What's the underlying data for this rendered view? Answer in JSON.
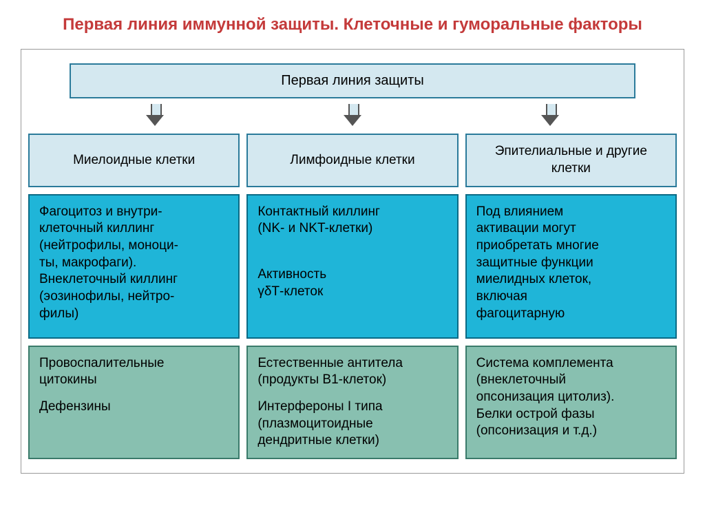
{
  "title": "Первая линия иммунной защиты. Клеточные и гуморальные факторы",
  "top_box": "Первая линия защиты",
  "colors": {
    "title_color": "#c43a3a",
    "light_blue_bg": "#d4e8f0",
    "light_blue_border": "#2a7a9a",
    "cyan_bg": "#1fb5d8",
    "cyan_border": "#0a6a85",
    "green_bg": "#88c0b0",
    "green_border": "#3a7a6a",
    "container_border": "#999999"
  },
  "typography": {
    "title_fontsize": 24,
    "cell_fontsize": 19,
    "topbox_fontsize": 20,
    "font_family": "Arial"
  },
  "layout": {
    "columns": 3,
    "rows_below_header": 3,
    "gap": 10,
    "arrow_count": 3
  },
  "columns": [
    {
      "header": "Миелоидные клетки",
      "blue_lines": [
        "Фагоцитоз и внутри-",
        "клеточный киллинг",
        "(нейтрофилы, моноци-",
        "ты, макрофаги).",
        "Внеклеточный киллинг",
        "(эозинофилы, нейтро-",
        "филы)"
      ],
      "green_lines_a": [
        "Провоспалительные",
        "цитокины"
      ],
      "green_lines_b": [
        "Дефензины"
      ]
    },
    {
      "header": "Лимфоидные клетки",
      "blue_lines_a": [
        "Контактный киллинг",
        "(NK- и NKT-клетки)"
      ],
      "blue_lines_b": [
        "Активность",
        "γδТ-клеток"
      ],
      "green_lines_a": [
        "Естественные антитела",
        "(продукты В1-клеток)"
      ],
      "green_lines_b": [
        "Интерфероны I типа",
        "(плазмоцитоидные",
        "дендритные клетки)"
      ]
    },
    {
      "header": "Эпителиальные и другие клетки",
      "blue_lines": [
        "Под влиянием",
        "активации могут",
        "приобретать многие",
        "защитные функции",
        "миелидных клеток,",
        "включая",
        "фагоцитарную"
      ],
      "green_lines": [
        "Система комплемента",
        "(внеклеточный",
        "опсонизация цитолиз).",
        "Белки острой фазы",
        "(опсонизация и т.д.)"
      ]
    }
  ]
}
